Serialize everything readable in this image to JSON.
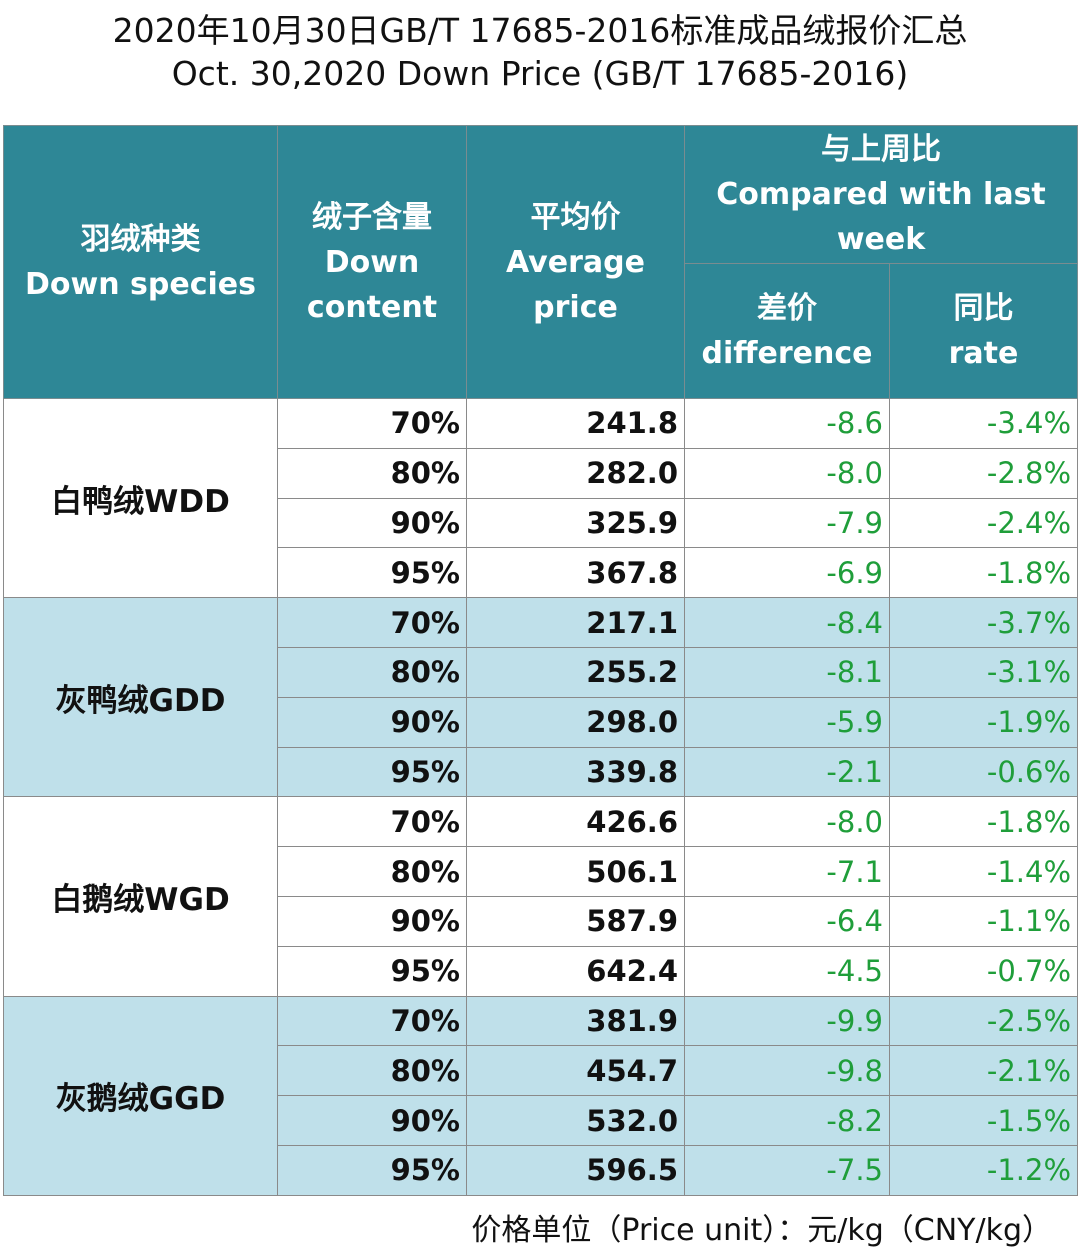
{
  "title_cn": "2020年10月30日GB/T 17685-2016标准成品绒报价汇总",
  "title_en": "Oct. 30,2020 Down Price (GB/T 17685-2016)",
  "headers": {
    "species": "羽绒种类\nDown species",
    "content": "绒子含量\nDown\ncontent",
    "avg": "平均价\nAverage\nprice",
    "compare": "与上周比\nCompared with last\nweek",
    "diff": "差价\ndifference",
    "rate": "同比\nrate"
  },
  "groups": [
    {
      "species": "白鸭绒WDD",
      "rows": [
        [
          "70%",
          "241.8",
          "-8.6",
          "-3.4%"
        ],
        [
          "80%",
          "282.0",
          "-8.0",
          "-2.8%"
        ],
        [
          "90%",
          "325.9",
          "-7.9",
          "-2.4%"
        ],
        [
          "95%",
          "367.8",
          "-6.9",
          "-1.8%"
        ]
      ]
    },
    {
      "species": "灰鸭绒GDD",
      "rows": [
        [
          "70%",
          "217.1",
          "-8.4",
          "-3.7%"
        ],
        [
          "80%",
          "255.2",
          "-8.1",
          "-3.1%"
        ],
        [
          "90%",
          "298.0",
          "-5.9",
          "-1.9%"
        ],
        [
          "95%",
          "339.8",
          "-2.1",
          "-0.6%"
        ]
      ]
    },
    {
      "species": "白鹅绒WGD",
      "rows": [
        [
          "70%",
          "426.6",
          "-8.0",
          "-1.8%"
        ],
        [
          "80%",
          "506.1",
          "-7.1",
          "-1.4%"
        ],
        [
          "90%",
          "587.9",
          "-6.4",
          "-1.1%"
        ],
        [
          "95%",
          "642.4",
          "-4.5",
          "-0.7%"
        ]
      ]
    },
    {
      "species": "灰鹅绒GGD",
      "rows": [
        [
          "70%",
          "381.9",
          "-9.9",
          "-2.5%"
        ],
        [
          "80%",
          "454.7",
          "-9.8",
          "-2.1%"
        ],
        [
          "90%",
          "532.0",
          "-8.2",
          "-1.5%"
        ],
        [
          "95%",
          "596.5",
          "-7.5",
          "-1.2%"
        ]
      ]
    }
  ],
  "footer": "价格单位（Price unit）：元/kg（CNY/kg）",
  "colors": {
    "header": "#2e8796",
    "band": "#bfe0ea",
    "negative": "#1f9e3a"
  }
}
